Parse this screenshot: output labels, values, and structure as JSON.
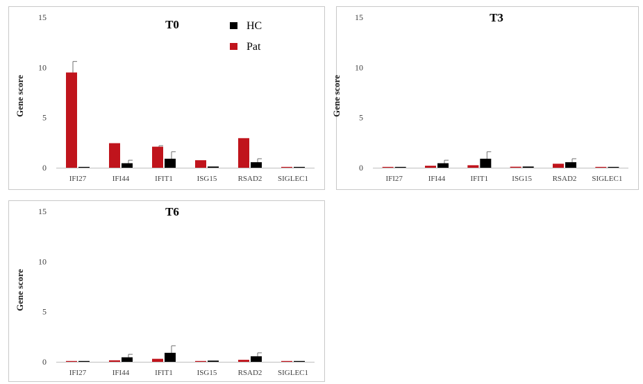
{
  "chart_data": [
    {
      "type": "bar",
      "title": "T0",
      "ylabel": "Gene score",
      "xlabel": "",
      "ylim": [
        0,
        15
      ],
      "yticks": [
        0,
        5,
        10,
        15
      ],
      "categories": [
        "IFI27",
        "IFI44",
        "IFIT1",
        "ISG15",
        "RSAD2",
        "SIGLEC1"
      ],
      "legend": "top-right",
      "series": [
        {
          "name": "Pat",
          "color": "#c0141c",
          "values": [
            9.5,
            2.45,
            2.1,
            0.75,
            2.95,
            0.05
          ],
          "errors": [
            1.1,
            0,
            0.1,
            0,
            0,
            0
          ]
        },
        {
          "name": "HC",
          "color": "#000000",
          "values": [
            0.05,
            0.45,
            0.9,
            0.12,
            0.55,
            0.05
          ],
          "errors": [
            0,
            0.3,
            0.7,
            0,
            0.35,
            0
          ]
        }
      ]
    },
    {
      "type": "bar",
      "title": "T3",
      "ylabel": "Gene score",
      "xlabel": "",
      "ylim": [
        0,
        15
      ],
      "yticks": [
        0,
        5,
        10,
        15
      ],
      "categories": [
        "IFI27",
        "IFI44",
        "IFIT1",
        "ISG15",
        "RSAD2",
        "SIGLEC1"
      ],
      "series": [
        {
          "name": "Pat",
          "color": "#c0141c",
          "values": [
            0.05,
            0.2,
            0.25,
            0.1,
            0.4,
            0.05
          ],
          "errors": [
            0,
            0,
            0,
            0,
            0,
            0
          ]
        },
        {
          "name": "HC",
          "color": "#000000",
          "values": [
            0.05,
            0.45,
            0.9,
            0.12,
            0.55,
            0.05
          ],
          "errors": [
            0,
            0.3,
            0.7,
            0,
            0.35,
            0
          ]
        }
      ]
    },
    {
      "type": "bar",
      "title": "T6",
      "ylabel": "Gene score",
      "xlabel": "",
      "ylim": [
        0,
        15
      ],
      "yticks": [
        0,
        5,
        10,
        15
      ],
      "categories": [
        "IFI27",
        "IFI44",
        "IFIT1",
        "ISG15",
        "RSAD2",
        "SIGLEC1"
      ],
      "series": [
        {
          "name": "Pat",
          "color": "#c0141c",
          "values": [
            0.05,
            0.15,
            0.3,
            0.05,
            0.2,
            0.05
          ],
          "errors": [
            0,
            0,
            0,
            0,
            0,
            0
          ]
        },
        {
          "name": "HC",
          "color": "#000000",
          "values": [
            0.05,
            0.45,
            0.9,
            0.12,
            0.55,
            0.05
          ],
          "errors": [
            0,
            0.3,
            0.7,
            0,
            0.35,
            0
          ]
        }
      ]
    }
  ]
}
